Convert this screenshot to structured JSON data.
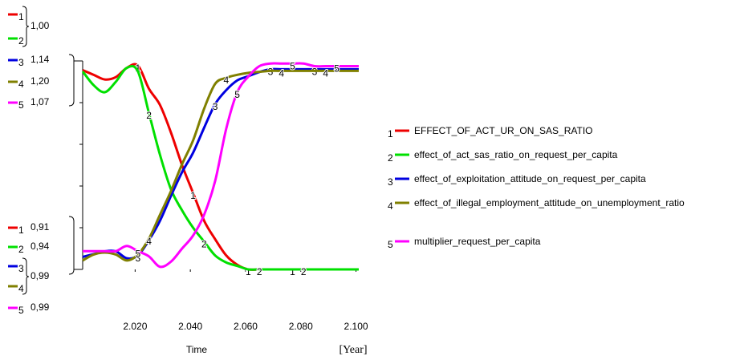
{
  "chart_data": {
    "type": "line",
    "x_label": "Time",
    "x_unit": "[Year]",
    "xlim": [
      2001,
      2101
    ],
    "xticks": [
      {
        "value": 2020,
        "label": "2.020"
      },
      {
        "value": 2040,
        "label": "2.040"
      },
      {
        "value": 2060,
        "label": "2.060"
      },
      {
        "value": 2080,
        "label": "2.080"
      },
      {
        "value": 2100,
        "label": "2.100"
      }
    ],
    "x": [
      2001,
      2005,
      2009,
      2013,
      2017,
      2021,
      2025,
      2029,
      2033,
      2037,
      2041,
      2045,
      2049,
      2053,
      2057,
      2061,
      2065,
      2069,
      2073,
      2077,
      2081,
      2085,
      2089,
      2093,
      2097,
      2101
    ],
    "scales": {
      "top": [
        {
          "ids": [
            "1",
            "2"
          ],
          "value": 1.0,
          "label": "1,00"
        },
        {
          "ids": [
            "3"
          ],
          "value": 1.14,
          "label": "1,14"
        },
        {
          "ids": [
            "4"
          ],
          "value": 1.2,
          "label": "1,20"
        },
        {
          "ids": [
            "5"
          ],
          "value": 1.07,
          "label": "1,07"
        }
      ],
      "bottom": [
        {
          "ids": [
            "1"
          ],
          "value": 0.91,
          "label": "0,91"
        },
        {
          "ids": [
            "2"
          ],
          "value": 0.94,
          "label": "0,94"
        },
        {
          "ids": [
            "3",
            "4"
          ],
          "value": 0.99,
          "label": "0,99"
        },
        {
          "ids": [
            "5"
          ],
          "value": 0.99,
          "label": "0,99"
        }
      ]
    },
    "series": [
      {
        "id": "1",
        "name": "EFFECT_OF_ACT_UR_ON_SAS_RATIO",
        "color": "#ee0000",
        "values": [
          0.996,
          0.994,
          0.992,
          0.993,
          0.997,
          0.998,
          0.988,
          0.981,
          0.969,
          0.955,
          0.943,
          0.931,
          0.923,
          0.916,
          0.912,
          0.91,
          0.91,
          0.91,
          0.91,
          0.91,
          0.91,
          0.91,
          0.91,
          0.91,
          0.91,
          0.91
        ]
      },
      {
        "id": "2",
        "name": "effect_of_act_sas_ratio_on_request_per_capita",
        "color": "#00e000",
        "values": [
          0.997,
          0.993,
          0.991,
          0.994,
          0.998,
          0.997,
          0.985,
          0.973,
          0.963,
          0.957,
          0.952,
          0.948,
          0.944,
          0.942,
          0.941,
          0.94,
          0.94,
          0.94,
          0.94,
          0.94,
          0.94,
          0.94,
          0.94,
          0.94,
          0.94,
          0.94
        ]
      },
      {
        "id": "3",
        "name": "effect_of_exploitation_attitude_on_request_per_capita",
        "color": "#0000e0",
        "values": [
          0.999,
          1.001,
          1.003,
          1.003,
          0.998,
          1.0,
          1.011,
          1.025,
          1.043,
          1.06,
          1.074,
          1.092,
          1.109,
          1.119,
          1.126,
          1.129,
          1.132,
          1.134,
          1.134,
          1.134,
          1.134,
          1.134,
          1.134,
          1.134,
          1.134,
          1.134
        ]
      },
      {
        "id": "4",
        "name": "effect_of_illegal_employment_attitude_on_unemployment_ratio",
        "color": "#808000",
        "values": [
          0.999,
          1.005,
          1.007,
          1.005,
          0.999,
          1.005,
          1.021,
          1.045,
          1.069,
          1.096,
          1.12,
          1.152,
          1.177,
          1.183,
          1.186,
          1.188,
          1.189,
          1.19,
          1.19,
          1.19,
          1.19,
          1.19,
          1.19,
          1.19,
          1.19,
          1.19
        ]
      },
      {
        "id": "5",
        "name": "multiplier_request_per_capita",
        "color": "#ff00ff",
        "values": [
          0.997,
          0.997,
          0.997,
          0.997,
          0.999,
          0.997,
          0.995,
          0.991,
          0.993,
          0.998,
          1.003,
          1.011,
          1.024,
          1.044,
          1.058,
          1.064,
          1.068,
          1.069,
          1.069,
          1.069,
          1.069,
          1.068,
          1.068,
          1.068,
          1.068,
          1.068
        ]
      }
    ]
  }
}
